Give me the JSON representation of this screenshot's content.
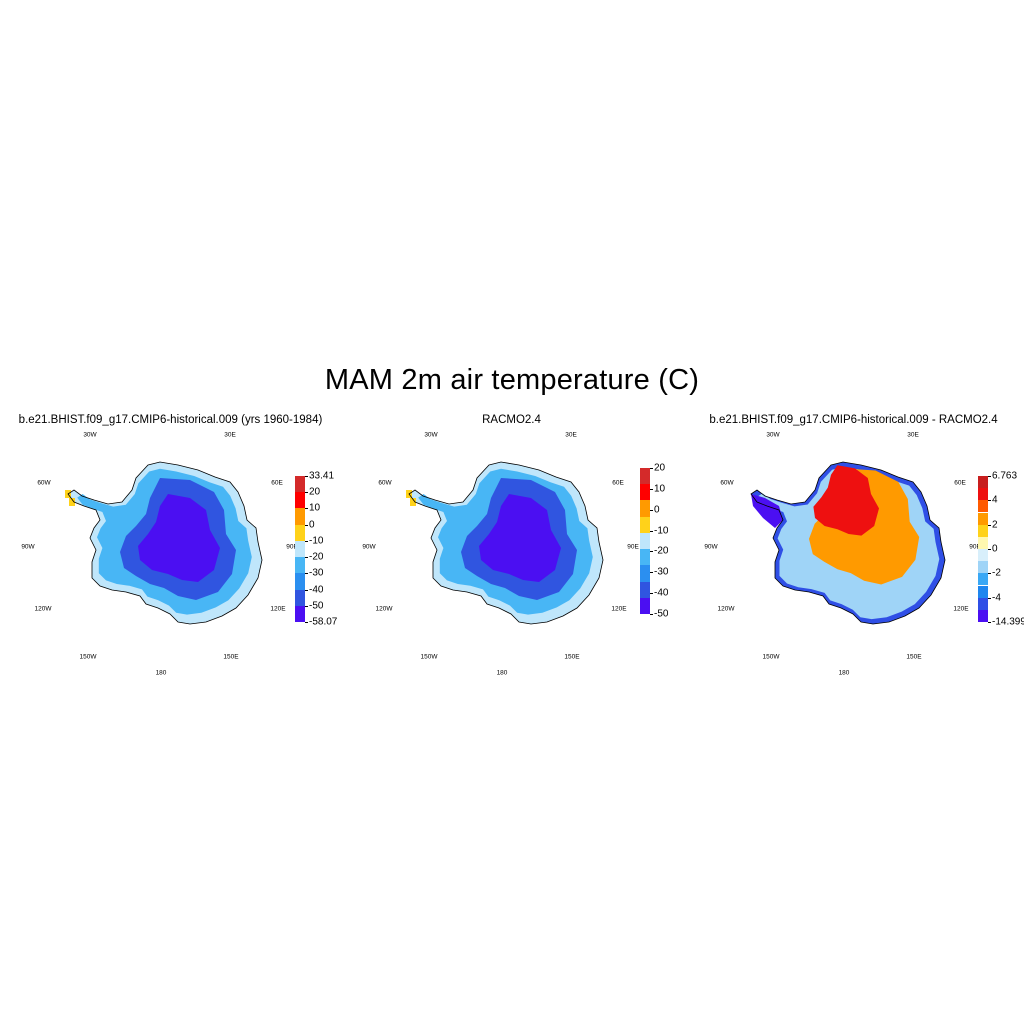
{
  "title": "MAM 2m air temperature (C)",
  "longitude_labels": [
    "30W",
    "30E",
    "60W",
    "60E",
    "90W",
    "90E",
    "120W",
    "120E",
    "150W",
    "150E",
    "180"
  ],
  "panels": [
    {
      "title": "b.e21.BHIST.f09_g17.CMIP6-historical.009 (yrs 1960-1984)",
      "palette": "absolute",
      "colorbar": {
        "colors": [
          "#4b0ff2",
          "#3055e0",
          "#2b8ff0",
          "#48b6f5",
          "#bfe6fb",
          "#ffd21a",
          "#ff9a00",
          "#ff0000",
          "#d42a2a"
        ],
        "labels": [
          "-58.07",
          "-50",
          "-40",
          "-30",
          "-20",
          "-10",
          "0",
          "10",
          "20",
          "33.41"
        ]
      }
    },
    {
      "title": "RACMO2.4",
      "palette": "absolute",
      "colorbar": {
        "colors": [
          "#4b0ff2",
          "#3055e0",
          "#2b8ff0",
          "#48b6f5",
          "#bfe6fb",
          "#ffd21a",
          "#ff9a00",
          "#ff0000",
          "#d42a2a"
        ],
        "labels": [
          "-50",
          "-40",
          "-30",
          "-20",
          "-10",
          "0",
          "10",
          "20"
        ]
      }
    },
    {
      "title": "b.e21.BHIST.f09_g17.CMIP6-historical.009 - RACMO2.4",
      "palette": "difference",
      "colorbar": {
        "colors": [
          "#4b0ff2",
          "#2f4fe6",
          "#1f86ef",
          "#3aa8f5",
          "#9fd4f7",
          "#d8effb",
          "#fff8b0",
          "#ffd21a",
          "#ff9a00",
          "#ff5a00",
          "#ee1010",
          "#c81e1e"
        ],
        "labels": [
          "-14.399",
          "-4",
          "-2",
          "0",
          "2",
          "4",
          "6.763"
        ]
      }
    }
  ]
}
